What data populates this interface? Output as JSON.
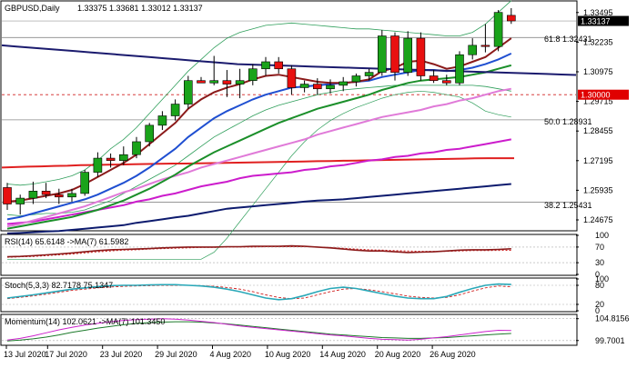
{
  "header": {
    "symbol": "GBPUSD,Daily",
    "ohlc": "1.33375 1.33681 1.33012 1.33137"
  },
  "colors": {
    "bull": "#1aa31a",
    "bear": "#e81010",
    "bb": "#2e9e5a",
    "ma_dark_red": "#8b1a1a",
    "ma_blue": "#1f4fd1",
    "ma_green": "#1b8f2a",
    "ma_pink": "#e07ad8",
    "ma_magenta": "#cc1ccc",
    "ma_red": "#e02020",
    "ma_navy": "#0d1b6e",
    "pivot_line": "#1b1b6e",
    "fib_line": "#888888",
    "level_line": "#d02020",
    "current_label_bg": "#000000",
    "level_label_bg": "#e00000"
  },
  "price_axis": {
    "ticks": [
      "1.33495",
      "1.32235",
      "1.30975",
      "1.29715",
      "1.28455",
      "1.27195",
      "1.25935",
      "1.24675"
    ],
    "current": "1.33137",
    "level": "1.30000"
  },
  "fib_labels": {
    "f618": "61.8 1.32431",
    "f50": "50.0 1.28931",
    "f382": "38.2 1.25431"
  },
  "rsi": {
    "label": "RSI(14) 65.6148 ->MA(7) 61.5982",
    "ticks": [
      "100",
      "70",
      "30",
      "0"
    ]
  },
  "stoch": {
    "label": "Stoch(5,3,3) 82.7178 75.1347",
    "ticks": [
      "100",
      "80",
      "20",
      "0"
    ]
  },
  "momentum": {
    "label": "Momentum(14) 102.0621 ->MA(7) 101.3450",
    "ticks": [
      "104.8156",
      "99.7001"
    ]
  },
  "chart_data": {
    "type": "candlestick",
    "title": "GBPUSD,Daily",
    "x_labels": [
      "13 Jul 2020",
      "17 Jul 2020",
      "23 Jul 2020",
      "29 Jul 2020",
      "4 Aug 2020",
      "10 Aug 2020",
      "14 Aug 2020",
      "20 Aug 2020",
      "26 Aug 2020"
    ],
    "ylim": [
      1.2425,
      1.3395
    ],
    "candles": [
      {
        "o": 1.2605,
        "h": 1.2625,
        "l": 1.251,
        "c": 1.2535
      },
      {
        "o": 1.2535,
        "h": 1.2575,
        "l": 1.249,
        "c": 1.256
      },
      {
        "o": 1.256,
        "h": 1.263,
        "l": 1.2535,
        "c": 1.259
      },
      {
        "o": 1.259,
        "h": 1.2625,
        "l": 1.256,
        "c": 1.2575
      },
      {
        "o": 1.2575,
        "h": 1.26,
        "l": 1.2535,
        "c": 1.2565
      },
      {
        "o": 1.2565,
        "h": 1.26,
        "l": 1.2545,
        "c": 1.258
      },
      {
        "o": 1.258,
        "h": 1.268,
        "l": 1.257,
        "c": 1.267
      },
      {
        "o": 1.267,
        "h": 1.2755,
        "l": 1.265,
        "c": 1.273
      },
      {
        "o": 1.273,
        "h": 1.275,
        "l": 1.269,
        "c": 1.272
      },
      {
        "o": 1.272,
        "h": 1.278,
        "l": 1.27,
        "c": 1.2745
      },
      {
        "o": 1.2745,
        "h": 1.282,
        "l": 1.273,
        "c": 1.28
      },
      {
        "o": 1.28,
        "h": 1.288,
        "l": 1.278,
        "c": 1.287
      },
      {
        "o": 1.287,
        "h": 1.293,
        "l": 1.285,
        "c": 1.291
      },
      {
        "o": 1.291,
        "h": 1.298,
        "l": 1.289,
        "c": 1.296
      },
      {
        "o": 1.296,
        "h": 1.308,
        "l": 1.294,
        "c": 1.306
      },
      {
        "o": 1.306,
        "h": 1.3075,
        "l": 1.305,
        "c": 1.305
      },
      {
        "o": 1.305,
        "h": 1.3165,
        "l": 1.304,
        "c": 1.306
      },
      {
        "o": 1.306,
        "h": 1.3105,
        "l": 1.299,
        "c": 1.3045
      },
      {
        "o": 1.3045,
        "h": 1.311,
        "l": 1.2985,
        "c": 1.306
      },
      {
        "o": 1.306,
        "h": 1.313,
        "l": 1.304,
        "c": 1.311
      },
      {
        "o": 1.311,
        "h": 1.316,
        "l": 1.308,
        "c": 1.314
      },
      {
        "o": 1.314,
        "h": 1.316,
        "l": 1.309,
        "c": 1.311
      },
      {
        "o": 1.311,
        "h": 1.3125,
        "l": 1.3,
        "c": 1.303
      },
      {
        "o": 1.303,
        "h": 1.306,
        "l": 1.301,
        "c": 1.3045
      },
      {
        "o": 1.3045,
        "h": 1.307,
        "l": 1.3,
        "c": 1.3025
      },
      {
        "o": 1.3025,
        "h": 1.3065,
        "l": 1.3005,
        "c": 1.304
      },
      {
        "o": 1.304,
        "h": 1.3075,
        "l": 1.3015,
        "c": 1.3055
      },
      {
        "o": 1.3055,
        "h": 1.309,
        "l": 1.3035,
        "c": 1.308
      },
      {
        "o": 1.308,
        "h": 1.311,
        "l": 1.306,
        "c": 1.3095
      },
      {
        "o": 1.3095,
        "h": 1.3275,
        "l": 1.308,
        "c": 1.325
      },
      {
        "o": 1.325,
        "h": 1.3265,
        "l": 1.306,
        "c": 1.3095
      },
      {
        "o": 1.3095,
        "h": 1.327,
        "l": 1.308,
        "c": 1.324
      },
      {
        "o": 1.324,
        "h": 1.3265,
        "l": 1.306,
        "c": 1.308
      },
      {
        "o": 1.308,
        "h": 1.3105,
        "l": 1.305,
        "c": 1.306
      },
      {
        "o": 1.306,
        "h": 1.3085,
        "l": 1.304,
        "c": 1.305
      },
      {
        "o": 1.305,
        "h": 1.3185,
        "l": 1.304,
        "c": 1.317
      },
      {
        "o": 1.317,
        "h": 1.324,
        "l": 1.315,
        "c": 1.321
      },
      {
        "o": 1.321,
        "h": 1.33,
        "l": 1.318,
        "c": 1.3205
      },
      {
        "o": 1.3205,
        "h": 1.336,
        "l": 1.3185,
        "c": 1.335
      },
      {
        "o": 1.33375,
        "h": 1.33681,
        "l": 1.33012,
        "c": 1.33137
      }
    ],
    "lines": {
      "ma_dark_red": [
        1.2545,
        1.255,
        1.256,
        1.257,
        1.258,
        1.2595,
        1.262,
        1.265,
        1.268,
        1.271,
        1.2745,
        1.279,
        1.2835,
        1.288,
        1.294,
        1.298,
        1.301,
        1.303,
        1.3045,
        1.3065,
        1.308,
        1.3085,
        1.3075,
        1.3065,
        1.3055,
        1.305,
        1.305,
        1.3055,
        1.3065,
        1.31,
        1.3115,
        1.314,
        1.3145,
        1.313,
        1.311,
        1.312,
        1.314,
        1.316,
        1.32,
        1.324
      ],
      "ma_blue": [
        1.247,
        1.248,
        1.2495,
        1.251,
        1.2525,
        1.254,
        1.2555,
        1.2575,
        1.26,
        1.2625,
        1.2655,
        1.269,
        1.273,
        1.277,
        1.282,
        1.286,
        1.29,
        1.293,
        1.2955,
        1.298,
        1.3,
        1.3015,
        1.303,
        1.3035,
        1.304,
        1.3045,
        1.305,
        1.3055,
        1.306,
        1.3075,
        1.3085,
        1.3095,
        1.3105,
        1.3105,
        1.31,
        1.3105,
        1.3115,
        1.313,
        1.315,
        1.3175
      ],
      "ma_green": [
        1.243,
        1.244,
        1.245,
        1.246,
        1.247,
        1.248,
        1.2495,
        1.251,
        1.253,
        1.255,
        1.2575,
        1.26,
        1.263,
        1.266,
        1.2695,
        1.2725,
        1.2755,
        1.278,
        1.2805,
        1.283,
        1.2855,
        1.288,
        1.29,
        1.292,
        1.294,
        1.2955,
        1.297,
        1.2985,
        1.3,
        1.302,
        1.3035,
        1.305,
        1.306,
        1.3065,
        1.307,
        1.3075,
        1.3085,
        1.3095,
        1.311,
        1.3125
      ],
      "ma_pink": [
        1.244,
        1.245,
        1.2465,
        1.248,
        1.2495,
        1.251,
        1.2525,
        1.2545,
        1.2565,
        1.2585,
        1.26,
        1.262,
        1.264,
        1.2655,
        1.267,
        1.269,
        1.2705,
        1.272,
        1.2735,
        1.275,
        1.2765,
        1.278,
        1.2795,
        1.281,
        1.283,
        1.2845,
        1.286,
        1.2875,
        1.289,
        1.2905,
        1.2915,
        1.2925,
        1.2935,
        1.295,
        1.296,
        1.2975,
        1.2985,
        1.3,
        1.3015,
        1.3025
      ],
      "ma_magenta": [
        1.245,
        1.2455,
        1.246,
        1.247,
        1.248,
        1.249,
        1.25,
        1.251,
        1.252,
        1.253,
        1.2545,
        1.2555,
        1.257,
        1.258,
        1.2595,
        1.261,
        1.262,
        1.263,
        1.2645,
        1.2655,
        1.266,
        1.2665,
        1.267,
        1.268,
        1.2685,
        1.2695,
        1.27,
        1.271,
        1.272,
        1.2725,
        1.2735,
        1.274,
        1.275,
        1.2755,
        1.2765,
        1.277,
        1.278,
        1.279,
        1.28,
        1.281
      ],
      "ma_red": [
        1.269,
        1.2692,
        1.2694,
        1.2695,
        1.2697,
        1.2698,
        1.27,
        1.2701,
        1.2702,
        1.2703,
        1.2704,
        1.2705,
        1.2706,
        1.2707,
        1.2707,
        1.2708,
        1.2709,
        1.271,
        1.2711,
        1.2712,
        1.2713,
        1.2714,
        1.2715,
        1.2716,
        1.2717,
        1.2718,
        1.2719,
        1.272,
        1.2721,
        1.2722,
        1.2723,
        1.2724,
        1.2725,
        1.2726,
        1.2727,
        1.2728,
        1.2729,
        1.273,
        1.273,
        1.273
      ],
      "ma_navy": [
        1.241,
        1.2412,
        1.2415,
        1.2418,
        1.242,
        1.2425,
        1.243,
        1.2435,
        1.244,
        1.2445,
        1.2455,
        1.2462,
        1.247,
        1.2478,
        1.2485,
        1.2495,
        1.2505,
        1.2515,
        1.252,
        1.2525,
        1.253,
        1.2535,
        1.254,
        1.2545,
        1.255,
        1.2552,
        1.2555,
        1.256,
        1.2565,
        1.257,
        1.2575,
        1.258,
        1.2585,
        1.259,
        1.2595,
        1.26,
        1.2605,
        1.261,
        1.2615,
        1.262
      ],
      "bb_upper": [
        1.262,
        1.2615,
        1.262,
        1.263,
        1.264,
        1.2655,
        1.268,
        1.272,
        1.277,
        1.281,
        1.286,
        1.292,
        1.298,
        1.304,
        1.31,
        1.315,
        1.32,
        1.324,
        1.3265,
        1.328,
        1.3295,
        1.33,
        1.3305,
        1.33,
        1.3295,
        1.329,
        1.3285,
        1.328,
        1.328,
        1.3275,
        1.327,
        1.3265,
        1.326,
        1.3255,
        1.325,
        1.325,
        1.3265,
        1.33,
        1.335,
        1.34
      ],
      "bb_lower": [
        1.249,
        1.2485,
        1.249,
        1.2495,
        1.2495,
        1.25,
        1.251,
        1.253,
        1.255,
        1.258,
        1.261,
        1.264,
        1.267,
        1.27,
        1.274,
        1.278,
        1.282,
        1.285,
        1.288,
        1.291,
        1.2935,
        1.2955,
        1.297,
        1.2985,
        1.3,
        1.301,
        1.302,
        1.3025,
        1.303,
        1.3035,
        1.304,
        1.304,
        1.304,
        1.304,
        1.304,
        1.304,
        1.304,
        1.3035,
        1.3025,
        1.3015
      ],
      "bb_long": [
        1.23,
        1.23,
        1.23,
        1.23,
        1.23,
        1.23,
        1.23,
        1.23,
        1.23,
        1.23,
        1.23,
        1.23,
        1.23,
        1.23,
        1.23,
        1.23,
        1.233,
        1.239,
        1.246,
        1.253,
        1.26,
        1.267,
        1.274,
        1.28,
        1.285,
        1.289,
        1.292,
        1.2945,
        1.2965,
        1.2985,
        1.3,
        1.301,
        1.3015,
        1.301,
        1.3,
        1.299,
        1.2965,
        1.293,
        1.2915,
        1.2905
      ],
      "resistance": [
        1.321,
        1.3205,
        1.32,
        1.3195,
        1.319,
        1.3185,
        1.318,
        1.3175,
        1.317,
        1.3165,
        1.316,
        1.3155,
        1.315,
        1.3145,
        1.314,
        1.3135,
        1.313,
        1.3128,
        1.3126,
        1.3124,
        1.3122,
        1.312,
        1.3118,
        1.3116,
        1.3114,
        1.3112,
        1.311,
        1.3108,
        1.3106,
        1.3104,
        1.3102,
        1.31,
        1.3098,
        1.3096,
        1.3094,
        1.3092,
        1.309,
        1.3088,
        1.3086,
        1.3084
      ]
    },
    "hlines": {
      "f618": 1.32431,
      "f50": 1.28931,
      "f382": 1.25431,
      "level": 1.3,
      "current": 1.33137
    },
    "rsi_values": [
      45,
      46,
      48,
      50,
      52,
      55,
      58,
      61,
      63,
      64,
      65,
      66,
      68,
      69,
      70,
      70,
      70,
      71,
      71,
      72,
      72,
      72,
      73,
      72,
      70,
      68,
      65,
      62,
      60,
      60,
      58,
      56,
      57,
      58,
      60,
      62,
      63,
      63,
      64,
      65.6
    ],
    "rsi_ma_values": [
      44,
      45,
      46,
      48,
      50,
      52,
      55,
      58,
      60,
      62,
      63,
      65,
      66,
      67,
      68,
      69,
      69,
      70,
      70,
      70,
      71,
      71,
      71,
      71,
      70,
      69,
      67,
      65,
      63,
      62,
      61,
      60,
      59,
      59,
      59,
      60,
      61,
      61,
      61.5,
      61.6
    ],
    "stoch_k": [
      40,
      45,
      50,
      56,
      62,
      68,
      72,
      76,
      79,
      80,
      80,
      81,
      82,
      82,
      80,
      78,
      74,
      68,
      60,
      50,
      40,
      35,
      38,
      48,
      60,
      70,
      74,
      70,
      62,
      54,
      46,
      40,
      38,
      38,
      45,
      58,
      70,
      80,
      84,
      82.7
    ],
    "stoch_d": [
      38,
      42,
      47,
      52,
      58,
      64,
      68,
      72,
      75,
      77,
      78,
      79,
      80,
      80,
      80,
      79,
      77,
      73,
      68,
      60,
      50,
      42,
      38,
      40,
      50,
      60,
      68,
      70,
      66,
      60,
      53,
      46,
      42,
      40,
      42,
      50,
      62,
      72,
      78,
      75.1
    ],
    "momentum_values": [
      99.8,
      100.2,
      100.8,
      101.5,
      102.2,
      102.8,
      103.3,
      103.7,
      104.1,
      104.4,
      104.6,
      104.7,
      104.8,
      104.7,
      104.5,
      104.2,
      103.9,
      103.5,
      103.1,
      102.8,
      102.5,
      102.2,
      101.9,
      101.6,
      101.3,
      101.0,
      100.8,
      100.5,
      100.2,
      100.0,
      99.9,
      99.8,
      100.0,
      100.3,
      100.6,
      101.0,
      101.4,
      101.8,
      102.1,
      102.06
    ],
    "momentum_ma_values": [
      99.6,
      99.8,
      100.1,
      100.5,
      101.0,
      101.6,
      102.1,
      102.6,
      103.0,
      103.4,
      103.7,
      103.9,
      104.0,
      104.1,
      104.1,
      104.0,
      103.8,
      103.6,
      103.3,
      103.0,
      102.7,
      102.4,
      102.1,
      101.8,
      101.5,
      101.2,
      101.0,
      100.8,
      100.6,
      100.4,
      100.3,
      100.2,
      100.2,
      100.3,
      100.4,
      100.6,
      100.8,
      101.0,
      101.2,
      101.35
    ]
  }
}
